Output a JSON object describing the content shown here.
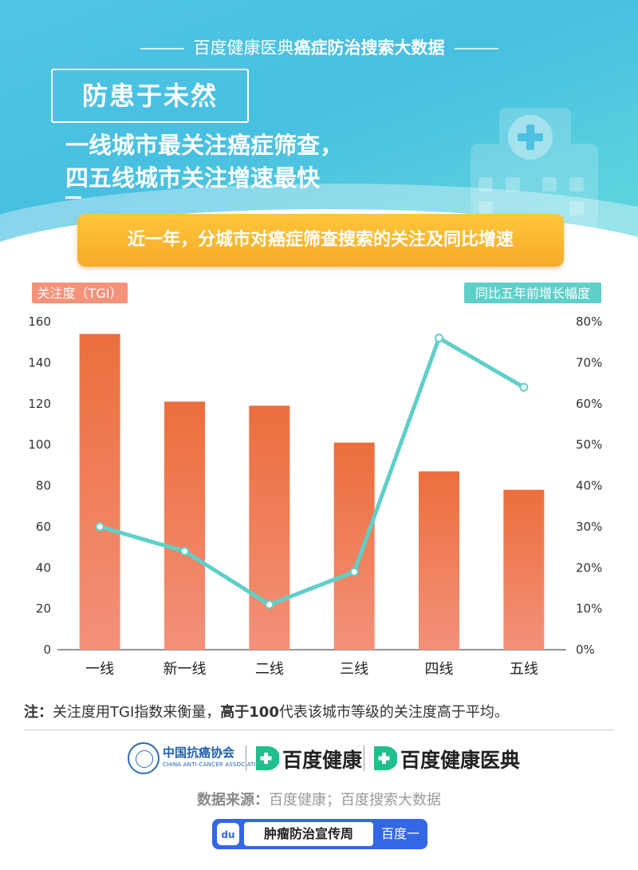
{
  "header": {
    "source_title_plain": "百度健康医典",
    "source_title_bold": "癌症防治搜索大数据",
    "tag": "防患于未然",
    "headline_line1": "一线城市最关注癌症筛查，",
    "headline_line2": "四五线城市关注增速最快",
    "subtitle_pill": "近一年，分城市对癌症筛查搜索的关注及同比增速"
  },
  "colors": {
    "header_blue": "#4cc1e2",
    "bar_top": "#ec6e3c",
    "bar_bottom": "#f39078",
    "line": "#5fcfc9",
    "pill_orange": "#f9b22f",
    "left_badge": "#f4927a",
    "right_badge": "#5fcfc9"
  },
  "chart_data": {
    "type": "bar",
    "categories": [
      "一线",
      "新一线",
      "二线",
      "三线",
      "四线",
      "五线"
    ],
    "series": [
      {
        "name": "关注度（TGI）",
        "type": "bar",
        "axis": "left",
        "values": [
          154,
          121,
          119,
          101,
          87,
          78
        ]
      },
      {
        "name": "同比五年前增长幅度",
        "type": "line",
        "axis": "right",
        "values": [
          30,
          24,
          11,
          19,
          76,
          64
        ]
      }
    ],
    "left_axis": {
      "label": "关注度（TGI）",
      "ylim": [
        0,
        160
      ],
      "ticks": [
        0,
        20,
        40,
        60,
        80,
        100,
        120,
        140,
        160
      ]
    },
    "right_axis": {
      "label": "同比五年前增长幅度",
      "ylim": [
        0,
        80
      ],
      "ticks": [
        "0%",
        "10%",
        "20%",
        "30%",
        "40%",
        "50%",
        "60%",
        "70%",
        "80%"
      ]
    },
    "grid": false
  },
  "note": {
    "prefix": "注：",
    "text_plain": "关注度用TGI指数来衡量，",
    "text_bold": "高于100",
    "text_tail": "代表该城市等级的关注度高于平均。"
  },
  "footer": {
    "assoc_name": "中国抗癌协会",
    "assoc_en": "CHINA ANTI-CANCER ASSOCIATION",
    "logo1": "百度健康",
    "logo2": "百度健康医典",
    "source_label": "数据来源：",
    "source_text": "百度健康；百度搜索大数据",
    "search_paw": "du",
    "search_query": "肿瘤防治宣传周",
    "search_button": "百度一下"
  }
}
